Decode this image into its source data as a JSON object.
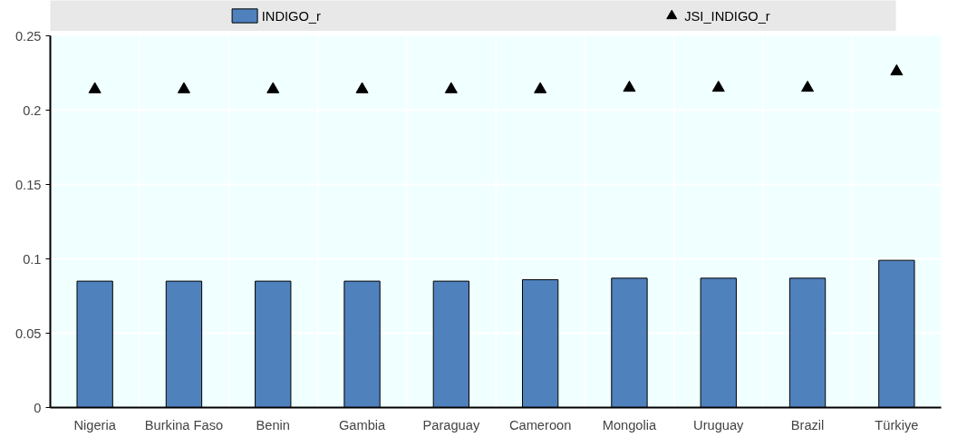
{
  "chart_data": {
    "type": "bar",
    "categories": [
      "Nigeria",
      "Burkina Faso",
      "Benin",
      "Gambia",
      "Paraguay",
      "Cameroon",
      "Mongolia",
      "Uruguay",
      "Brazil",
      "Türkiye"
    ],
    "series": [
      {
        "name": "INDIGO_r",
        "color": "#4f81bd",
        "values": [
          0.085,
          0.085,
          0.085,
          0.085,
          0.085,
          0.086,
          0.087,
          0.087,
          0.087,
          0.099
        ]
      },
      {
        "name": "JSI_INDIGO_r",
        "type": "scatter",
        "marker": "triangle",
        "color": "#000000",
        "values": [
          0.214,
          0.214,
          0.214,
          0.214,
          0.214,
          0.214,
          0.215,
          0.215,
          0.215,
          0.226
        ]
      }
    ],
    "ylim": [
      0,
      0.25
    ],
    "yticks": [
      0,
      0.05,
      0.1,
      0.15,
      0.2,
      0.25
    ],
    "grid": true,
    "legend": "top"
  }
}
